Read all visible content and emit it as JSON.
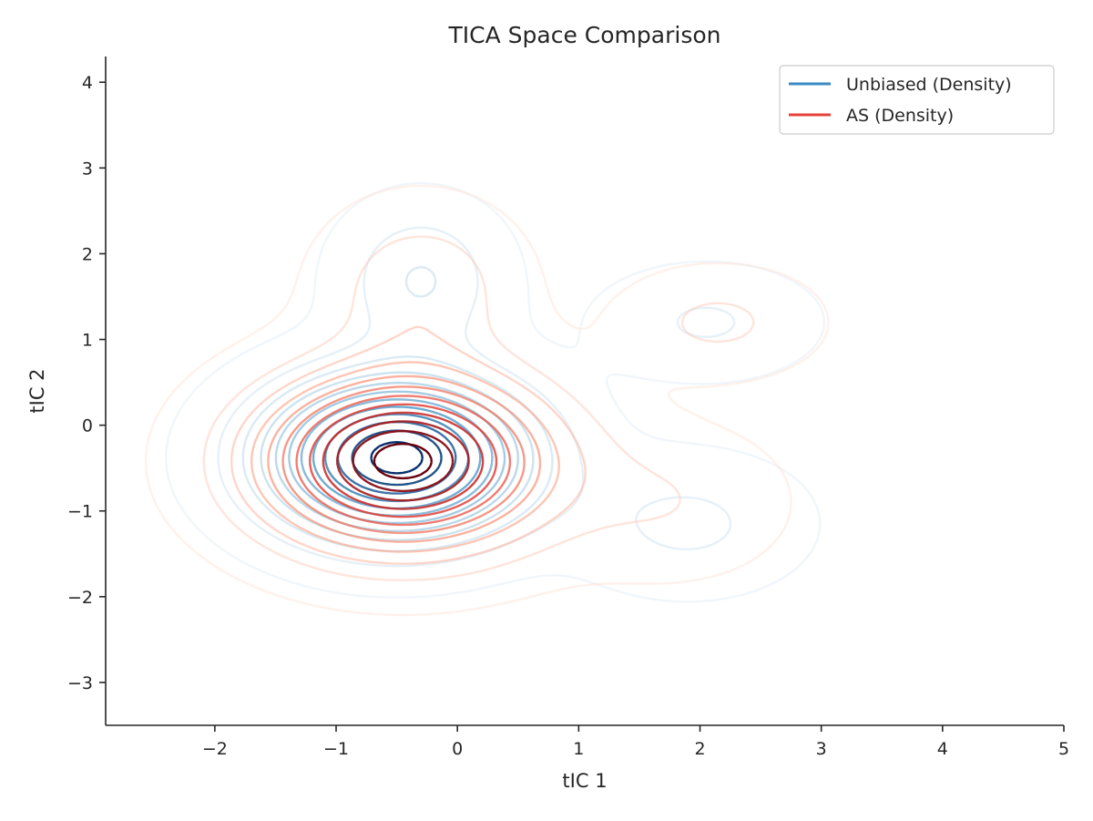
{
  "chart_data": {
    "type": "contour",
    "title": "TICA Space Comparison",
    "xlabel": "tIC 1",
    "ylabel": "tIC 2",
    "xlim": [
      -2.9,
      5.0
    ],
    "ylim": [
      -3.5,
      4.3
    ],
    "xticks": [
      -2,
      -1,
      0,
      1,
      2,
      3,
      4,
      5
    ],
    "yticks": [
      -3,
      -2,
      -1,
      0,
      1,
      2,
      3,
      4
    ],
    "xtick_labels": [
      "−2",
      "−1",
      "0",
      "1",
      "2",
      "3",
      "4",
      "5"
    ],
    "ytick_labels": [
      "−3",
      "−2",
      "−1",
      "0",
      "1",
      "2",
      "3",
      "4"
    ],
    "grid": false,
    "legend_position": "upper right",
    "series": [
      {
        "name": "Unbiased (Density)",
        "color": "#3a8ac4",
        "colormap": "Blues",
        "peaks": [
          {
            "x": -0.5,
            "y": -0.38,
            "sx": 0.7,
            "sy": 0.6,
            "w": 1.0
          },
          {
            "x": -0.3,
            "y": 1.7,
            "sx": 0.42,
            "sy": 0.55,
            "w": 0.2
          },
          {
            "x": 2.05,
            "y": 1.2,
            "sx": 0.55,
            "sy": 0.4,
            "w": 0.12
          },
          {
            "x": 1.9,
            "y": -1.15,
            "sx": 0.6,
            "sy": 0.5,
            "w": 0.13
          }
        ]
      },
      {
        "name": "AS (Density)",
        "color": "#e8413a",
        "colormap": "Reds",
        "peaks": [
          {
            "x": -0.45,
            "y": -0.42,
            "sx": 0.78,
            "sy": 0.66,
            "w": 1.0
          },
          {
            "x": -0.3,
            "y": 1.6,
            "sx": 0.5,
            "sy": 0.6,
            "w": 0.18
          },
          {
            "x": 2.15,
            "y": 1.2,
            "sx": 0.5,
            "sy": 0.38,
            "w": 0.13
          },
          {
            "x": 1.75,
            "y": -0.9,
            "sx": 0.6,
            "sy": 0.55,
            "w": 0.1
          }
        ]
      }
    ],
    "contour_levels": 12
  }
}
